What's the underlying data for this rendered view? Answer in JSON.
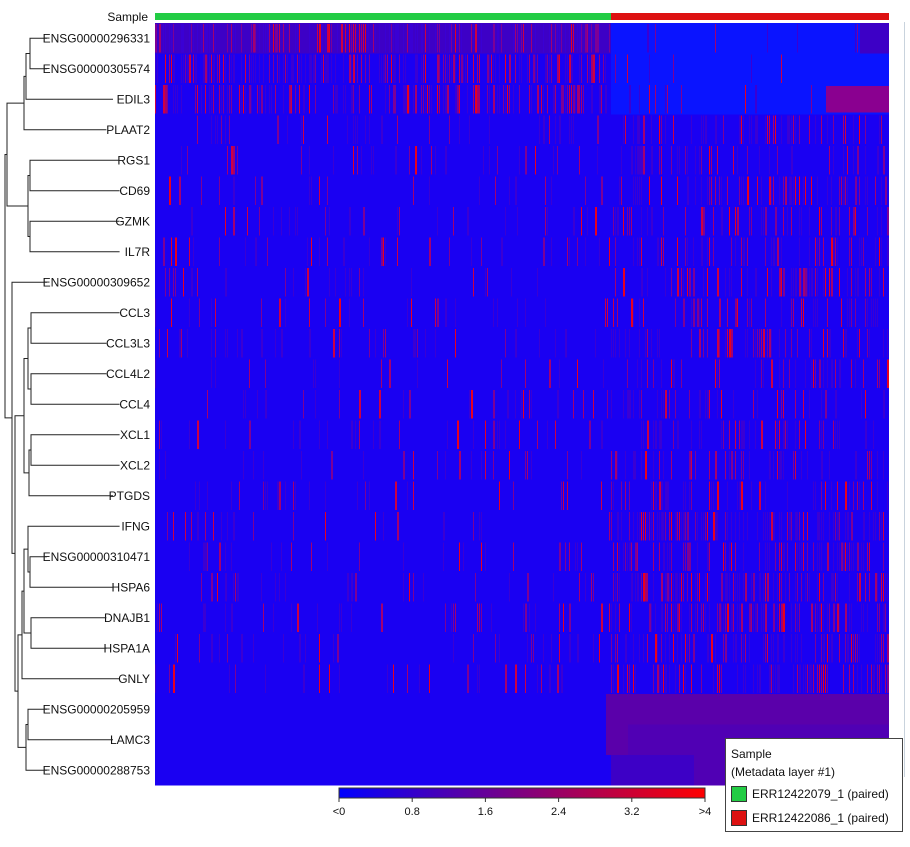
{
  "chart_data": {
    "type": "heatmap",
    "annotation_label": "Sample",
    "rows": [
      "ENSG00000296331",
      "ENSG00000305574",
      "EDIL3",
      "PLAAT2",
      "RGS1",
      "CD69",
      "GZMK",
      "IL7R",
      "ENSG00000309652",
      "CCL3",
      "CCL3L3",
      "CCL4L2",
      "CCL4",
      "XCL1",
      "XCL2",
      "PTGDS",
      "IFNG",
      "ENSG00000310471",
      "HSPA6",
      "DNAJB1",
      "HSPA1A",
      "GNLY",
      "ENSG00000205959",
      "LAMC3",
      "ENSG00000288753"
    ],
    "groups": [
      {
        "name": "ERR12422079_1 (paired)",
        "color": "#22cc44",
        "fraction": 0.621
      },
      {
        "name": "ERR12422086_1 (paired)",
        "color": "#dd1111",
        "fraction": 0.379
      }
    ],
    "colorbar": {
      "ticks": [
        "<0",
        "0.8",
        "1.6",
        "2.4",
        "3.2",
        ">4"
      ],
      "min_color": "#0000ff",
      "max_color": "#ff0000"
    },
    "legend": {
      "title": "Sample",
      "subtitle": "(Metadata layer #1)"
    },
    "dendrogram": "hierarchical clustering of genes (rows)"
  }
}
